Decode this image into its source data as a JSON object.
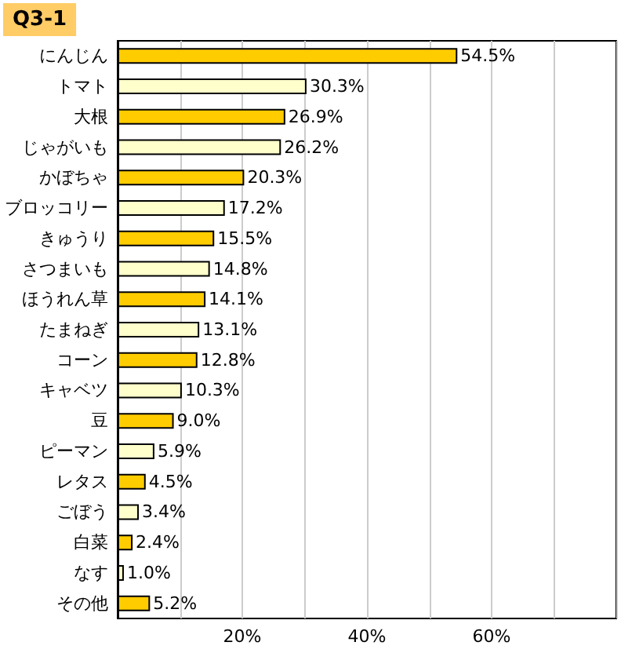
{
  "chart_data": {
    "type": "bar",
    "orientation": "horizontal",
    "title": "Q3-1",
    "categories": [
      "にんじん",
      "トマト",
      "大根",
      "じゃがいも",
      "かぼちゃ",
      "ブロッコリー",
      "きゅうり",
      "さつまいも",
      "ほうれん草",
      "たまねぎ",
      "コーン",
      "キャベツ",
      "豆",
      "ピーマン",
      "レタス",
      "ごぼう",
      "白菜",
      "なす",
      "その他"
    ],
    "values": [
      54.5,
      30.3,
      26.9,
      26.2,
      20.3,
      17.2,
      15.5,
      14.8,
      14.1,
      13.1,
      12.8,
      10.3,
      9.0,
      5.9,
      4.5,
      3.4,
      2.4,
      1.0,
      5.2
    ],
    "value_labels": [
      "54.5%",
      "30.3%",
      "26.9%",
      "26.2%",
      "20.3%",
      "17.2%",
      "15.5%",
      "14.8%",
      "14.1%",
      "13.1%",
      "12.8%",
      "10.3%",
      "9.0%",
      "5.9%",
      "4.5%",
      "3.4%",
      "2.4%",
      "1.0%",
      "5.2%"
    ],
    "colors": [
      "#ffcc00",
      "#ffffcc",
      "#ffcc00",
      "#ffffcc",
      "#ffcc00",
      "#ffffcc",
      "#ffcc00",
      "#ffffcc",
      "#ffcc00",
      "#ffffcc",
      "#ffcc00",
      "#ffffcc",
      "#ffcc00",
      "#ffffcc",
      "#ffcc00",
      "#ffffcc",
      "#ffcc00",
      "#ffffcc",
      "#ffcc00"
    ],
    "xlim": [
      0,
      80
    ],
    "xticks": [
      {
        "value": 0,
        "label": null
      },
      {
        "value": 10,
        "label": null
      },
      {
        "value": 20,
        "label": "20%"
      },
      {
        "value": 30,
        "label": null
      },
      {
        "value": 40,
        "label": "40%"
      },
      {
        "value": 50,
        "label": null
      },
      {
        "value": 60,
        "label": "60%"
      },
      {
        "value": 70,
        "label": null
      },
      {
        "value": 80,
        "label": null
      }
    ],
    "grid": "x"
  }
}
